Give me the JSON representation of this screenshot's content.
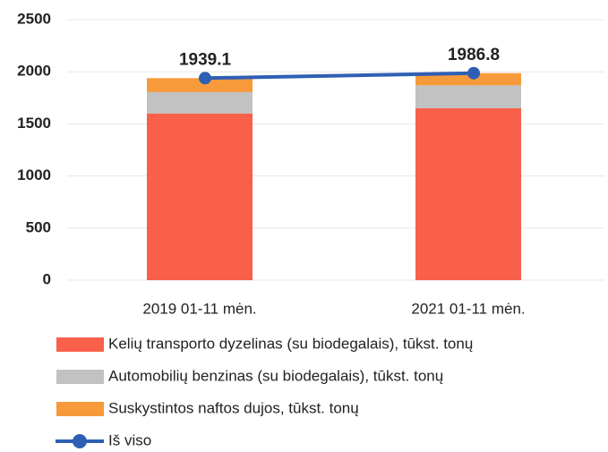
{
  "chart_data": {
    "type": "bar",
    "stacked": true,
    "categories": [
      "2019 01-11 mėn.",
      "2021 01-11 mėn."
    ],
    "series": [
      {
        "name": "Kelių transporto dyzelinas (su biodegalais), tūkst. tonų",
        "color": "#f8604a",
        "values": [
          1600,
          1650
        ]
      },
      {
        "name": "Automobilių benzinas (su biodegalais), tūkst. tonų",
        "color": "#c2c2c2",
        "values": [
          205,
          220
        ]
      },
      {
        "name": "Suskystintos naftos dujos, tūkst. tonų",
        "color": "#f79a3a",
        "values": [
          134,
          117
        ]
      },
      {
        "name": "Iš viso",
        "type": "line",
        "color": "#2f5fb5",
        "values": [
          1939.1,
          1986.8
        ]
      }
    ],
    "ylim": [
      0,
      2500
    ],
    "yticks": [
      0,
      500,
      1000,
      1500,
      2000,
      2500
    ],
    "grid": true,
    "legend": "bottom"
  }
}
